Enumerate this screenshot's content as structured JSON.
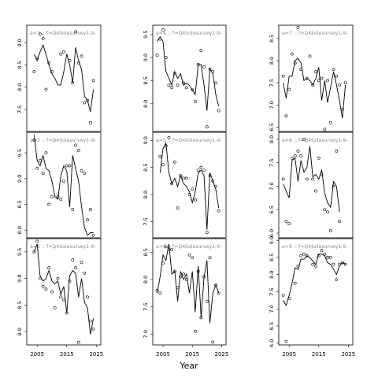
{
  "figure": {
    "xlabel": "Year"
  },
  "chart_data": [
    {
      "type": "scatter",
      "strip_label": "a=1 :: f=Q4Solesurvey1-9-",
      "ylim": [
        7.0,
        9.4
      ],
      "yticks": [
        "7.5",
        "8.0",
        "8.5",
        "9.0"
      ],
      "xticks": [],
      "series": [
        {
          "kind": "points",
          "x": [
            2004,
            2005,
            2006,
            2007,
            2008,
            2009,
            2010,
            2013,
            2014,
            2016,
            2017,
            2018,
            2019,
            2020,
            2021,
            2022,
            2023,
            2024
          ],
          "y": [
            8.35,
            8.65,
            9.2,
            9.1,
            7.95,
            8.55,
            8.35,
            8.75,
            8.8,
            8.6,
            8.1,
            9.25,
            8.55,
            8.7,
            7.65,
            7.7,
            7.2,
            8.15
          ]
        },
        {
          "kind": "line",
          "x": [
            2004,
            2005,
            2006,
            2007,
            2008,
            2009,
            2010,
            2011,
            2012,
            2013,
            2014,
            2015,
            2016,
            2017,
            2018,
            2019,
            2020,
            2021,
            2022,
            2023,
            2024
          ],
          "y": [
            8.75,
            8.6,
            8.8,
            8.95,
            8.75,
            8.5,
            8.3,
            8.2,
            8.05,
            8.05,
            8.35,
            8.75,
            8.5,
            8.1,
            8.9,
            8.6,
            8.4,
            7.8,
            7.7,
            7.45,
            7.95
          ]
        }
      ]
    },
    {
      "type": "scatter",
      "strip_label": "a=4 :: f=Q4Solesurvey1-9-",
      "ylim": [
        7.4,
        9.7
      ],
      "yticks": [
        "8.0",
        "8.5",
        "9.0",
        "9.5"
      ],
      "xticks": [],
      "series": [
        {
          "kind": "points",
          "x": [
            2003,
            2004,
            2005,
            2006,
            2007,
            2008,
            2009,
            2010,
            2012,
            2013,
            2015,
            2016,
            2017,
            2018,
            2019,
            2020,
            2021,
            2022,
            2023,
            2024
          ],
          "y": [
            9.05,
            9.4,
            9.6,
            9.0,
            8.4,
            8.35,
            8.65,
            8.4,
            8.45,
            8.35,
            8.3,
            8.05,
            8.85,
            9.15,
            8.8,
            7.5,
            8.75,
            8.7,
            8.45,
            7.85
          ]
        },
        {
          "kind": "line",
          "x": [
            2003,
            2004,
            2005,
            2006,
            2007,
            2008,
            2009,
            2010,
            2011,
            2012,
            2013,
            2014,
            2015,
            2016,
            2017,
            2018,
            2019,
            2020,
            2021,
            2022,
            2023,
            2024
          ],
          "y": [
            9.35,
            9.45,
            9.35,
            8.7,
            8.55,
            8.4,
            8.7,
            8.55,
            8.65,
            8.4,
            8.45,
            8.4,
            8.3,
            8.2,
            8.85,
            8.85,
            8.4,
            7.85,
            8.75,
            8.65,
            8.2,
            7.95
          ]
        }
      ]
    },
    {
      "type": "scatter",
      "strip_label": "a=7 :: f=Q4Solesurvey1-9-",
      "ylim": [
        6.4,
        8.8
      ],
      "yticks": [
        "6.5",
        "7.0",
        "7.5",
        "8.0",
        "8.5"
      ],
      "xticks": [],
      "series": [
        {
          "kind": "points",
          "x": [
            2003,
            2004,
            2005,
            2006,
            2007,
            2008,
            2009,
            2011,
            2012,
            2013,
            2014,
            2015,
            2016,
            2017,
            2018,
            2019,
            2020,
            2021,
            2022,
            2023,
            2024
          ],
          "y": [
            7.65,
            6.75,
            7.35,
            8.15,
            7.95,
            8.75,
            7.8,
            7.6,
            8.1,
            7.45,
            7.75,
            7.55,
            7.6,
            6.45,
            7.55,
            6.6,
            7.8,
            7.65,
            7.45,
            6.9,
            7.5
          ]
        },
        {
          "kind": "line",
          "x": [
            2003,
            2004,
            2005,
            2006,
            2007,
            2008,
            2009,
            2010,
            2011,
            2012,
            2013,
            2014,
            2015,
            2016,
            2017,
            2018,
            2019,
            2020,
            2021,
            2022,
            2023,
            2024
          ],
          "y": [
            7.5,
            7.15,
            7.65,
            7.65,
            8.0,
            8.05,
            7.95,
            7.55,
            7.6,
            7.55,
            7.45,
            7.6,
            7.85,
            7.1,
            7.55,
            7.05,
            7.4,
            7.75,
            7.45,
            7.1,
            6.7,
            7.45
          ]
        }
      ]
    },
    {
      "type": "scatter",
      "strip_label": "a=2 :: f=Q4Solesurvey1-9-",
      "ylim": [
        7.85,
        9.9
      ],
      "yticks": [
        "8.0",
        "8.5",
        "9.0",
        "9.5"
      ],
      "xticks": [],
      "series": [
        {
          "kind": "points",
          "x": [
            2004,
            2005,
            2006,
            2007,
            2008,
            2009,
            2010,
            2012,
            2013,
            2014,
            2015,
            2016,
            2017,
            2018,
            2019,
            2020,
            2021,
            2022,
            2023,
            2024
          ],
          "y": [
            9.75,
            9.2,
            9.35,
            9.1,
            9.5,
            8.5,
            8.65,
            8.65,
            8.6,
            8.95,
            9.25,
            9.25,
            8.4,
            9.65,
            9.55,
            9.15,
            9.1,
            8.2,
            8.4,
            7.9
          ]
        },
        {
          "kind": "line",
          "x": [
            2004,
            2005,
            2006,
            2007,
            2008,
            2009,
            2010,
            2011,
            2012,
            2013,
            2014,
            2015,
            2016,
            2017,
            2018,
            2019,
            2020,
            2021,
            2022,
            2023,
            2024
          ],
          "y": [
            9.85,
            9.35,
            9.25,
            9.45,
            9.2,
            9.15,
            8.95,
            8.65,
            8.6,
            9.05,
            9.25,
            9.15,
            8.45,
            9.45,
            9.2,
            8.95,
            8.45,
            8.05,
            7.9,
            7.95,
            7.95
          ]
        }
      ]
    },
    {
      "type": "scatter",
      "strip_label": "a=5 :: f=Q4Solesurvey1-9-",
      "ylim": [
        7.2,
        9.15
      ],
      "yticks": [
        "7.5",
        "8.0",
        "8.5",
        "9.0"
      ],
      "xticks": [],
      "series": [
        {
          "kind": "points",
          "x": [
            2004,
            2005,
            2006,
            2007,
            2008,
            2009,
            2010,
            2011,
            2012,
            2013,
            2014,
            2015,
            2016,
            2017,
            2018,
            2019,
            2020,
            2021,
            2022,
            2023,
            2024
          ],
          "y": [
            8.7,
            8.55,
            8.9,
            9.05,
            8.2,
            8.6,
            7.75,
            8.35,
            8.3,
            8.3,
            8.0,
            8.1,
            7.9,
            8.45,
            8.5,
            8.45,
            7.3,
            8.35,
            8.25,
            8.15,
            7.7
          ]
        },
        {
          "kind": "line",
          "x": [
            2004,
            2005,
            2006,
            2007,
            2008,
            2009,
            2010,
            2011,
            2012,
            2013,
            2014,
            2015,
            2016,
            2017,
            2018,
            2019,
            2020,
            2021,
            2022,
            2023,
            2024
          ],
          "y": [
            8.4,
            8.85,
            8.95,
            8.4,
            8.2,
            8.3,
            8.15,
            8.35,
            8.2,
            8.15,
            8.05,
            7.85,
            8.05,
            8.4,
            8.45,
            8.35,
            7.35,
            8.4,
            8.25,
            8.1,
            7.75
          ]
        }
      ]
    },
    {
      "type": "scatter",
      "strip_label": "a=8 :: f=Q4Solesurvey1-9-",
      "ylim": [
        5.9,
        8.15
      ],
      "yticks": [
        "6.0",
        "6.5",
        "7.0",
        "7.5",
        "8.0"
      ],
      "xticks": [],
      "series": [
        {
          "kind": "points",
          "x": [
            2003,
            2004,
            2005,
            2006,
            2007,
            2008,
            2009,
            2010,
            2011,
            2013,
            2014,
            2015,
            2016,
            2017,
            2018,
            2019,
            2020,
            2021,
            2022
          ],
          "y": [
            7.15,
            6.25,
            6.2,
            7.6,
            7.65,
            7.75,
            7.65,
            8.0,
            7.15,
            7.15,
            6.9,
            7.6,
            7.25,
            6.5,
            6.45,
            6.05,
            7.0,
            7.75,
            6.25
          ]
        },
        {
          "kind": "line",
          "x": [
            2003,
            2004,
            2005,
            2006,
            2007,
            2008,
            2009,
            2010,
            2011,
            2012,
            2013,
            2014,
            2015,
            2016,
            2017,
            2018,
            2019,
            2020,
            2021,
            2022
          ],
          "y": [
            7.05,
            6.9,
            6.75,
            7.55,
            7.6,
            7.1,
            7.55,
            7.3,
            7.4,
            7.85,
            7.2,
            7.25,
            7.15,
            7.35,
            6.85,
            6.65,
            6.55,
            7.1,
            7.0,
            6.45
          ]
        }
      ]
    },
    {
      "type": "scatter",
      "strip_label": "a=3 :: f=Q4Solesurvey1-9-",
      "ylim": [
        7.75,
        9.75
      ],
      "yticks": [
        "8.0",
        "8.5",
        "9.0",
        "9.5"
      ],
      "xticks": [
        "2005",
        "2015",
        "2025"
      ],
      "series": [
        {
          "kind": "points",
          "x": [
            2004,
            2005,
            2006,
            2007,
            2008,
            2009,
            2010,
            2011,
            2012,
            2013,
            2014,
            2015,
            2016,
            2017,
            2018,
            2019,
            2020,
            2021,
            2022,
            2023,
            2024
          ],
          "y": [
            9.5,
            9.7,
            9.0,
            8.85,
            8.8,
            9.2,
            8.75,
            8.45,
            9.0,
            8.65,
            8.6,
            8.35,
            8.95,
            9.35,
            9.2,
            7.8,
            9.3,
            9.1,
            8.65,
            8.2,
            8.05
          ]
        },
        {
          "kind": "line",
          "x": [
            2004,
            2005,
            2006,
            2007,
            2008,
            2009,
            2010,
            2011,
            2012,
            2013,
            2014,
            2015,
            2016,
            2017,
            2018,
            2019,
            2020,
            2021,
            2022,
            2023,
            2024
          ],
          "y": [
            9.5,
            9.65,
            9.05,
            8.95,
            9.0,
            9.15,
            8.95,
            8.9,
            8.95,
            8.7,
            8.85,
            8.35,
            9.05,
            9.15,
            9.1,
            8.65,
            9.0,
            8.55,
            8.45,
            7.95,
            8.25
          ]
        }
      ]
    },
    {
      "type": "scatter",
      "strip_label": "a=6 :: f=Q4Solesurvey1-9-",
      "ylim": [
        6.8,
        8.75
      ],
      "yticks": [
        "7.0",
        "7.5",
        "8.0",
        "8.5"
      ],
      "xticks": [
        "2005",
        "2015",
        "2025"
      ],
      "series": [
        {
          "kind": "points",
          "x": [
            2003,
            2004,
            2005,
            2006,
            2007,
            2008,
            2009,
            2010,
            2011,
            2012,
            2013,
            2014,
            2015,
            2016,
            2017,
            2018,
            2019,
            2020,
            2021,
            2022,
            2023,
            2024
          ],
          "y": [
            7.8,
            7.75,
            8.3,
            8.6,
            8.55,
            8.55,
            8.15,
            7.85,
            8.05,
            8.1,
            8.0,
            8.45,
            8.4,
            7.05,
            8.15,
            7.3,
            8.05,
            7.6,
            8.4,
            6.85,
            7.9,
            7.75
          ]
        },
        {
          "kind": "line",
          "x": [
            2003,
            2004,
            2005,
            2006,
            2007,
            2008,
            2009,
            2010,
            2011,
            2012,
            2013,
            2014,
            2015,
            2016,
            2017,
            2018,
            2019,
            2020,
            2021,
            2022,
            2023,
            2024
          ],
          "y": [
            7.75,
            8.05,
            8.45,
            8.35,
            8.65,
            8.1,
            8.15,
            7.6,
            8.15,
            8.0,
            8.1,
            7.75,
            8.15,
            7.4,
            8.25,
            7.3,
            8.05,
            8.35,
            7.2,
            7.75,
            7.9,
            7.75
          ]
        }
      ]
    },
    {
      "type": "scatter",
      "strip_label": "a=9 :: f=Q4Solesurvey1-9-",
      "ylim": [
        5.95,
        9.05
      ],
      "yticks": [
        "6.0",
        "6.5",
        "7.0",
        "7.5",
        "8.0",
        "8.5",
        "9.0"
      ],
      "xticks": [
        "2005",
        "2015",
        "2025"
      ],
      "series": [
        {
          "kind": "points",
          "x": [
            2003,
            2004,
            2005,
            2007,
            2008,
            2009,
            2010,
            2011,
            2013,
            2014,
            2015,
            2016,
            2017,
            2018,
            2019,
            2020,
            2021,
            2022,
            2023,
            2024
          ],
          "y": [
            7.4,
            6.05,
            7.3,
            7.75,
            8.25,
            8.55,
            8.6,
            8.55,
            8.3,
            8.25,
            8.55,
            8.7,
            8.6,
            8.5,
            8.5,
            8.3,
            7.85,
            8.3,
            8.35,
            8.3
          ]
        },
        {
          "kind": "line",
          "x": [
            2003,
            2004,
            2005,
            2006,
            2007,
            2008,
            2009,
            2010,
            2011,
            2012,
            2013,
            2014,
            2015,
            2016,
            2017,
            2018,
            2019,
            2020,
            2021,
            2022,
            2023,
            2024
          ],
          "y": [
            7.25,
            7.1,
            7.4,
            7.75,
            8.2,
            8.15,
            8.45,
            8.45,
            8.55,
            8.5,
            8.4,
            8.3,
            8.6,
            8.6,
            8.55,
            8.35,
            8.3,
            8.15,
            8.0,
            8.25,
            8.35,
            8.3
          ]
        }
      ]
    }
  ]
}
